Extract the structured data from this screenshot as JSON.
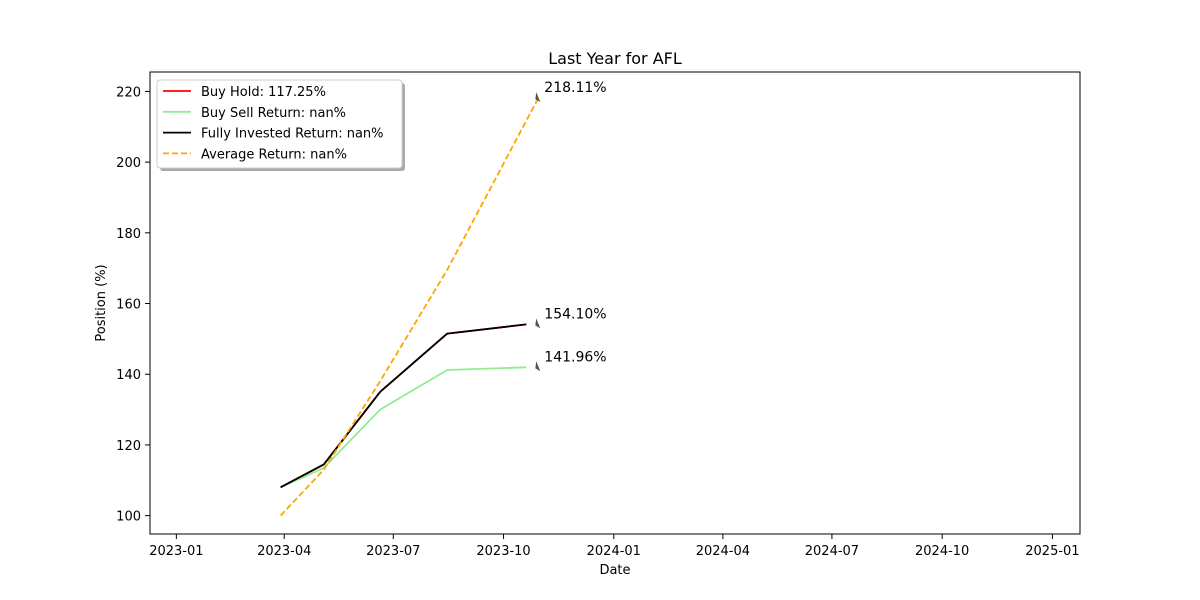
{
  "chart_data": {
    "type": "line",
    "title": "Last Year for AFL",
    "xlabel": "Date",
    "ylabel": "Position (%)",
    "xlim": [
      "2022-12-10",
      "2025-01-24"
    ],
    "ylim": [
      94.8,
      225.5
    ],
    "x_ticks": [
      "2023-01",
      "2023-04",
      "2023-07",
      "2023-10",
      "2024-01",
      "2024-04",
      "2024-07",
      "2024-10",
      "2025-01"
    ],
    "y_ticks": [
      100,
      120,
      140,
      160,
      180,
      200,
      220
    ],
    "grid": false,
    "legend_position": "top-left",
    "series": [
      {
        "name": "Buy Hold: 117.25%",
        "color": "#ff0000",
        "style": "solid",
        "x": [
          "2023-03-29",
          "2023-05-04",
          "2023-06-20",
          "2023-08-15",
          "2023-10-20"
        ],
        "values": [
          108,
          114.5,
          135,
          151.5,
          154.1
        ]
      },
      {
        "name": "Buy Sell Return: nan%",
        "color": "#90ee90",
        "style": "solid",
        "x": [
          "2023-03-29",
          "2023-05-04",
          "2023-06-20",
          "2023-08-15",
          "2023-10-20"
        ],
        "values": [
          108,
          113.5,
          130,
          141.2,
          141.96
        ]
      },
      {
        "name": "Fully Invested Return: nan%",
        "color": "#000000",
        "style": "solid",
        "x": [
          "2023-03-29",
          "2023-05-04",
          "2023-06-20",
          "2023-08-15",
          "2023-10-20"
        ],
        "values": [
          108,
          114.5,
          135,
          151.5,
          154.1
        ]
      },
      {
        "name": "Average Return: nan%",
        "color": "#ffa500",
        "style": "dashed",
        "x": [
          "2023-03-29",
          "2023-05-04",
          "2023-06-20",
          "2023-08-15",
          "2023-10-30"
        ],
        "values": [
          100,
          113,
          138,
          169.5,
          218.11
        ]
      }
    ],
    "annotations": [
      {
        "text": "218.11%",
        "x": "2023-10-30",
        "y": 218.11
      },
      {
        "text": "154.10%",
        "x": "2023-10-30",
        "y": 154.1
      },
      {
        "text": "141.96%",
        "x": "2023-10-30",
        "y": 141.96
      }
    ]
  }
}
